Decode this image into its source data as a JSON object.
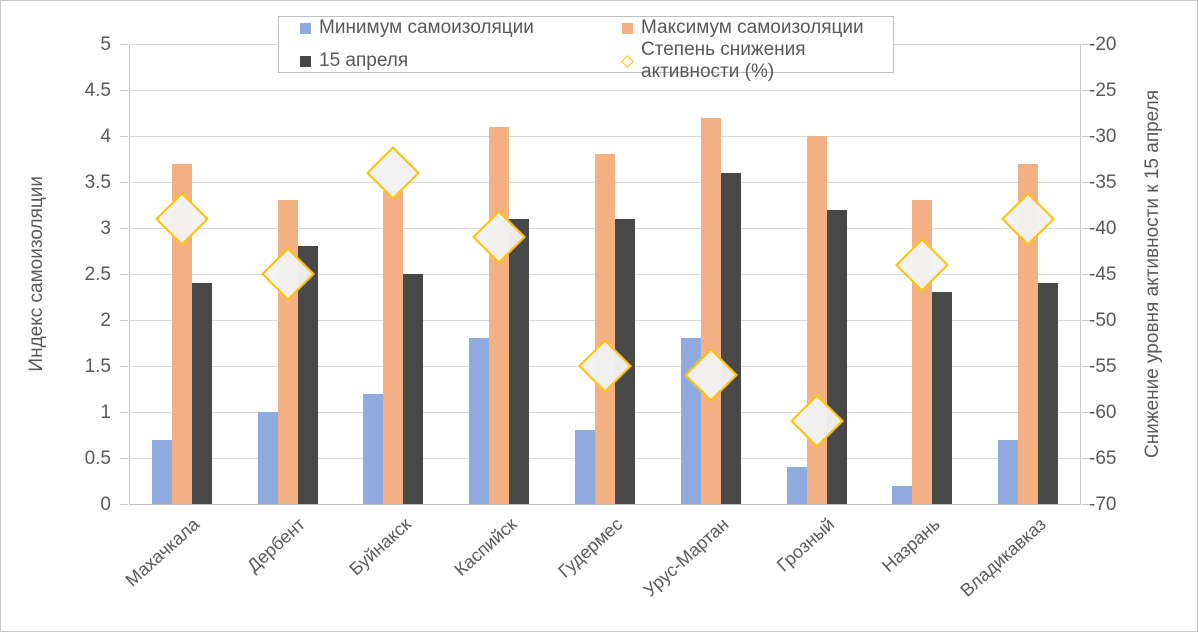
{
  "chart_data": {
    "type": "combo-bar-scatter",
    "title": "",
    "categories": [
      "Махачкала",
      "Дербент",
      "Буйнакск",
      "Каспийск",
      "Гудермес",
      "Урус-Мартан",
      "Грозный",
      "Назрань",
      "Владикавказ"
    ],
    "series": [
      {
        "name": "Минимум самоизоляции",
        "type": "bar",
        "axis": "left",
        "color": "#8FAADC",
        "values": [
          0.7,
          1.0,
          1.2,
          1.8,
          0.8,
          1.8,
          0.4,
          0.2,
          0.7
        ]
      },
      {
        "name": "Максимум самоизоляции",
        "type": "bar",
        "axis": "left",
        "color": "#F3B183",
        "values": [
          3.7,
          3.3,
          3.4,
          4.1,
          3.8,
          4.2,
          4.0,
          3.3,
          3.7
        ]
      },
      {
        "name": "15 апреля",
        "type": "bar",
        "axis": "left",
        "color": "#484848",
        "values": [
          2.4,
          2.8,
          2.5,
          3.1,
          3.1,
          3.6,
          3.2,
          2.3,
          2.4
        ]
      },
      {
        "name": "Степень снижения активности (%)",
        "type": "scatter",
        "marker": "diamond",
        "axis": "right",
        "color": "#FFC000",
        "marker_fill": "#F2F2F2",
        "values": [
          -39,
          -45,
          -34,
          -41,
          -55,
          -56,
          -61,
          -44,
          -39
        ]
      }
    ],
    "left_axis": {
      "title": "Индекс самоизоляции",
      "min": 0,
      "max": 5,
      "step": 0.5,
      "ticks": [
        "0",
        "0.5",
        "1",
        "1.5",
        "2",
        "2.5",
        "3",
        "3.5",
        "4",
        "4.5",
        "5"
      ]
    },
    "right_axis": {
      "title": "Снижение уровня активности к 15 апреля",
      "min": -70,
      "max": -20,
      "step": 5,
      "ticks": [
        "-20",
        "-25",
        "-30",
        "-35",
        "-40",
        "-45",
        "-50",
        "-55",
        "-60",
        "-65",
        "-70"
      ]
    },
    "grid": "horizontal",
    "legend_position": "top",
    "colors": {
      "gridline": "#D9D9D9",
      "axis_line": "#C9C9C9",
      "text": "#595959",
      "background": "#FFFFFF",
      "frame_border": "#C9C9C9"
    }
  }
}
